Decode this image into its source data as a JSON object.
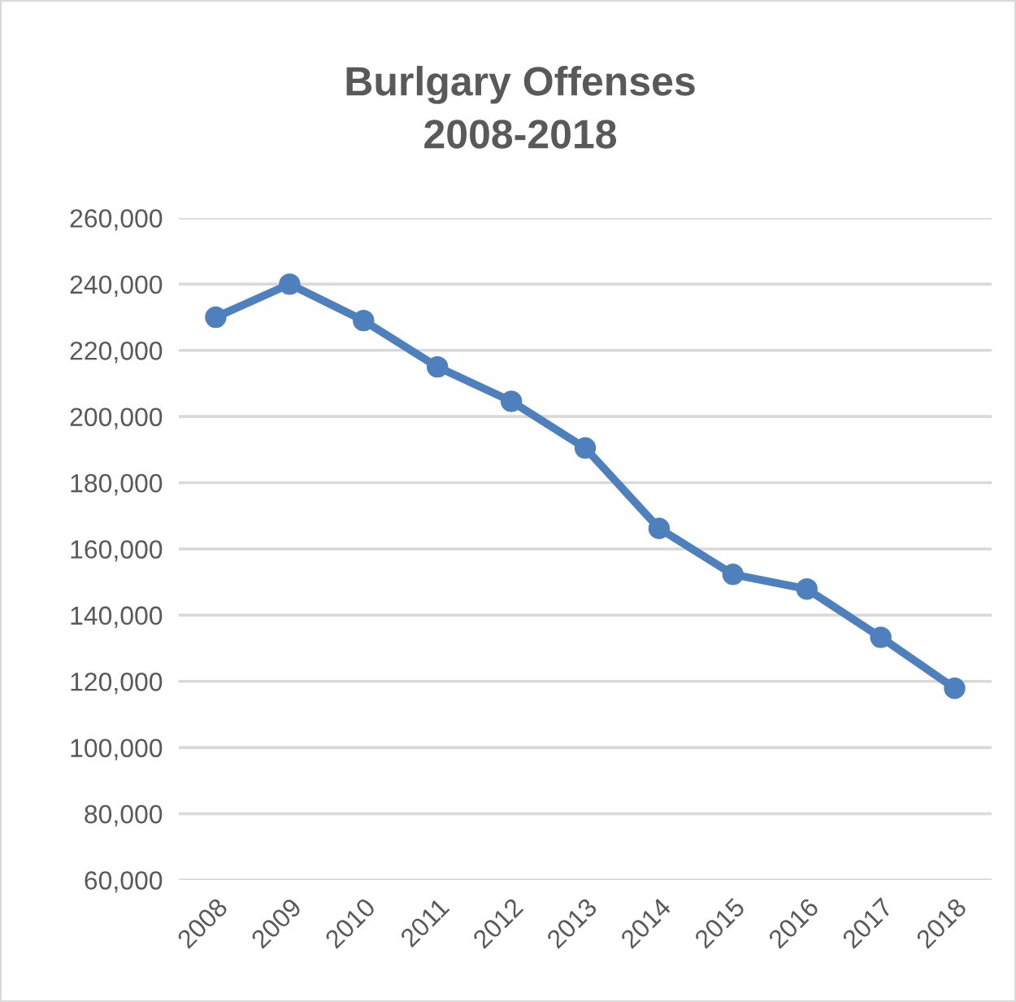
{
  "chart_data": {
    "type": "line",
    "title": "Burlgary Offenses\n2008-2018",
    "categories": [
      "2008",
      "2009",
      "2010",
      "2011",
      "2012",
      "2013",
      "2014",
      "2015",
      "2016",
      "2017",
      "2018"
    ],
    "series": [
      {
        "color": "#4e80bd",
        "values": [
          230000,
          240000,
          229000,
          215000,
          204600,
          190500,
          166200,
          152300,
          147900,
          133300,
          117900
        ]
      }
    ],
    "ylim": [
      60000,
      260000
    ],
    "yticks": [
      {
        "value": 60000,
        "label": "60,000"
      },
      {
        "value": 80000,
        "label": "80,000"
      },
      {
        "value": 100000,
        "label": "100,000"
      },
      {
        "value": 120000,
        "label": "120,000"
      },
      {
        "value": 140000,
        "label": "140,000"
      },
      {
        "value": 160000,
        "label": "160,000"
      },
      {
        "value": 180000,
        "label": "180,000"
      },
      {
        "value": 200000,
        "label": "200,000"
      },
      {
        "value": 220000,
        "label": "220,000"
      },
      {
        "value": 240000,
        "label": "240,000"
      },
      {
        "value": 260000,
        "label": "260,000"
      }
    ],
    "grid": "y",
    "marker": "circle",
    "line_style": "solid"
  }
}
